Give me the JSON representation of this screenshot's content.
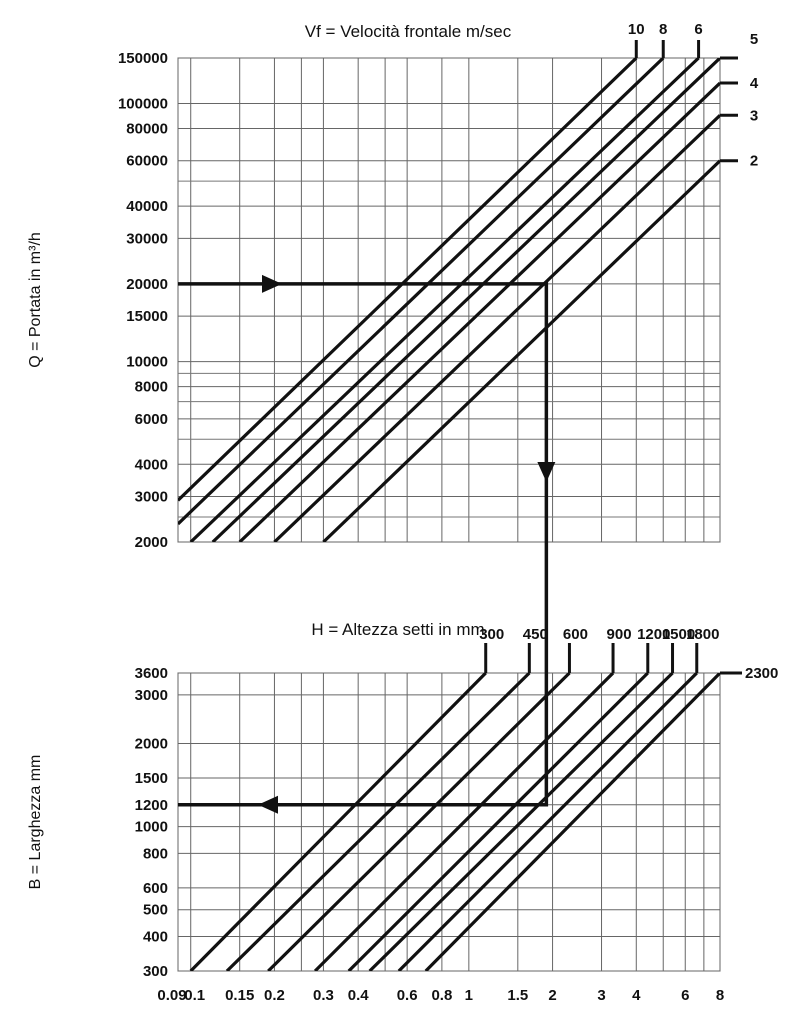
{
  "chart_data": [
    {
      "type": "line",
      "log_scale": {
        "x": true,
        "y": true
      },
      "title": "Vf = Velocità frontale m/sec",
      "ylabel": "Q = Portata in m³/h",
      "ylim": [
        2000,
        150000
      ],
      "y_ticks": [
        {
          "label": "150000",
          "value": 150000
        },
        {
          "label": "100000",
          "value": 100000
        },
        {
          "label": "80000",
          "value": 80000
        },
        {
          "label": "60000",
          "value": 60000
        },
        {
          "label": "40000",
          "value": 40000
        },
        {
          "label": "30000",
          "value": 30000
        },
        {
          "label": "20000",
          "value": 20000
        },
        {
          "label": "15000",
          "value": 15000
        },
        {
          "label": "10000",
          "value": 10000
        },
        {
          "label": "8000",
          "value": 8000
        },
        {
          "label": "6000",
          "value": 6000
        },
        {
          "label": "4000",
          "value": 4000
        },
        {
          "label": "3000",
          "value": 3000
        },
        {
          "label": "2000",
          "value": 2000
        }
      ],
      "series": [
        {
          "name": "10",
          "x": [
            0.09,
            4.0
          ],
          "y": [
            2900,
            150000
          ]
        },
        {
          "name": "8",
          "x": [
            0.09,
            5.0
          ],
          "y": [
            2350,
            150000
          ]
        },
        {
          "name": "6",
          "x": [
            0.1,
            6.7
          ],
          "y": [
            2000,
            150000
          ]
        },
        {
          "name": "5",
          "x": [
            0.12,
            8.0
          ],
          "y": [
            2000,
            150000
          ]
        },
        {
          "name": "4",
          "x": [
            0.15,
            8.0
          ],
          "y": [
            2000,
            120000
          ]
        },
        {
          "name": "3",
          "x": [
            0.2,
            8.0
          ],
          "y": [
            2000,
            90000
          ]
        },
        {
          "name": "2",
          "x": [
            0.3,
            8.0
          ],
          "y": [
            2000,
            60000
          ]
        }
      ],
      "example_path": {
        "x": [
          0.09,
          1.9,
          1.9
        ],
        "y": [
          20000,
          20000,
          2000
        ]
      }
    },
    {
      "type": "line",
      "log_scale": {
        "x": true,
        "y": true
      },
      "title": "H = Altezza setti in mm",
      "ylabel": "B = Larghezza mm",
      "ylim": [
        300,
        3600
      ],
      "xlim": [
        0.09,
        8
      ],
      "x_ticks": [
        {
          "label": "0.09",
          "value": 0.09
        },
        {
          "label": "0.1",
          "value": 0.1
        },
        {
          "label": "0.15",
          "value": 0.15
        },
        {
          "label": "0.2",
          "value": 0.2
        },
        {
          "label": "0.3",
          "value": 0.3
        },
        {
          "label": "0.4",
          "value": 0.4
        },
        {
          "label": "0.6",
          "value": 0.6
        },
        {
          "label": "0.8",
          "value": 0.8
        },
        {
          "label": "1",
          "value": 1
        },
        {
          "label": "1.5",
          "value": 1.5
        },
        {
          "label": "2",
          "value": 2
        },
        {
          "label": "3",
          "value": 3
        },
        {
          "label": "4",
          "value": 4
        },
        {
          "label": "6",
          "value": 6
        },
        {
          "label": "8",
          "value": 8
        }
      ],
      "y_ticks": [
        {
          "label": "3600",
          "value": 3600
        },
        {
          "label": "3000",
          "value": 3000
        },
        {
          "label": "2000",
          "value": 2000
        },
        {
          "label": "1500",
          "value": 1500
        },
        {
          "label": "1200",
          "value": 1200
        },
        {
          "label": "1000",
          "value": 1000
        },
        {
          "label": "800",
          "value": 800
        },
        {
          "label": "600",
          "value": 600
        },
        {
          "label": "500",
          "value": 500
        },
        {
          "label": "400",
          "value": 400
        },
        {
          "label": "300",
          "value": 300
        }
      ],
      "series": [
        {
          "name": "300",
          "x": [
            0.1,
            1.15
          ],
          "y": [
            300,
            3600
          ]
        },
        {
          "name": "450",
          "x": [
            0.135,
            1.65
          ],
          "y": [
            300,
            3600
          ]
        },
        {
          "name": "600",
          "x": [
            0.19,
            2.3
          ],
          "y": [
            300,
            3600
          ]
        },
        {
          "name": "900",
          "x": [
            0.28,
            3.3
          ],
          "y": [
            300,
            3600
          ]
        },
        {
          "name": "1200",
          "x": [
            0.37,
            4.4
          ],
          "y": [
            300,
            3600
          ]
        },
        {
          "name": "1500",
          "x": [
            0.44,
            5.4
          ],
          "y": [
            300,
            3600
          ]
        },
        {
          "name": "1800",
          "x": [
            0.56,
            6.6
          ],
          "y": [
            300,
            3600
          ]
        },
        {
          "name": "2300",
          "x": [
            0.7,
            8.0
          ],
          "y": [
            300,
            3600
          ]
        }
      ],
      "example_path": {
        "x": [
          1.9,
          1.9,
          0.09
        ],
        "y": [
          3600,
          1200,
          1200
        ]
      }
    }
  ]
}
